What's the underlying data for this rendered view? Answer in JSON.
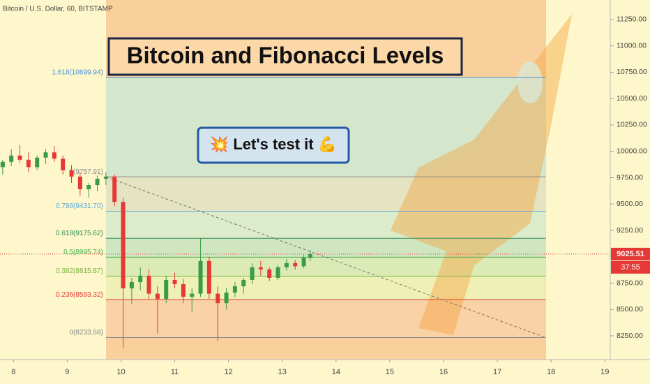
{
  "chart_data": {
    "type": "candlestick",
    "header": "Bitcoin / U.S. Dollar, 60, BITSTAMP",
    "title": "Bitcoin and Fibonacci Levels",
    "callout": "💥 Let's test it 💪",
    "xlim": [
      7.75,
      19.1
    ],
    "xticks": [
      8,
      9,
      10,
      11,
      12,
      13,
      14,
      15,
      16,
      17,
      18,
      19
    ],
    "ylim": [
      8025,
      11435
    ],
    "yticks": [
      {
        "value": 8250,
        "label": "8250.00"
      },
      {
        "value": 8500,
        "label": "8500.00"
      },
      {
        "value": 8750,
        "label": "8750.00"
      },
      {
        "value": 9000,
        "label": "9000.00"
      },
      {
        "value": 9250,
        "label": "9250.00"
      },
      {
        "value": 9500,
        "label": "9500.00"
      },
      {
        "value": 9750,
        "label": "9750.00"
      },
      {
        "value": 10000,
        "label": "10000.00"
      },
      {
        "value": 10250,
        "label": "10250.00"
      },
      {
        "value": 10500,
        "label": "10500.00"
      },
      {
        "value": 10750,
        "label": "10750.00"
      },
      {
        "value": 11000,
        "label": "11000.00"
      },
      {
        "value": 11250,
        "label": "11250.00"
      }
    ],
    "up_color": "#3a9c47",
    "down_color": "#e53935",
    "candles": {
      "x": [
        7.8,
        7.96,
        8.12,
        8.28,
        8.44,
        8.6,
        8.76,
        8.92,
        9.08,
        9.24,
        9.4,
        9.56,
        9.72,
        9.88,
        10.04,
        10.2,
        10.36,
        10.52,
        10.68,
        10.84,
        11.0,
        11.16,
        11.32,
        11.48,
        11.64,
        11.8,
        11.96,
        12.12,
        12.28,
        12.44,
        12.6,
        12.76,
        12.92,
        13.08,
        13.24,
        13.4,
        13.52
      ],
      "open": [
        9850,
        9900,
        9960,
        9920,
        9850,
        9940,
        9990,
        9930,
        9820,
        9760,
        9640,
        9680,
        9740,
        9760,
        9520,
        8700,
        8760,
        8820,
        8650,
        8600,
        8780,
        8740,
        8620,
        8650,
        8960,
        8650,
        8560,
        8660,
        8720,
        8780,
        8900,
        8880,
        8800,
        8900,
        8940,
        8910,
        8990
      ],
      "high": [
        9920,
        10020,
        10060,
        9990,
        9960,
        10020,
        10050,
        9960,
        9870,
        9800,
        9700,
        9770,
        9800,
        9780,
        9560,
        8800,
        8900,
        8880,
        8720,
        8820,
        8850,
        8790,
        8700,
        9180,
        9000,
        8720,
        8700,
        8760,
        8800,
        8940,
        8960,
        8900,
        8920,
        8980,
        8970,
        9020,
        9060
      ],
      "low": [
        9780,
        9860,
        9890,
        9800,
        9820,
        9880,
        9900,
        9780,
        9700,
        9580,
        9560,
        9620,
        9680,
        9480,
        8130,
        8550,
        8680,
        8600,
        8270,
        8560,
        8700,
        8560,
        8480,
        8620,
        8600,
        8200,
        8500,
        8620,
        8650,
        8740,
        8820,
        8770,
        8780,
        8870,
        8880,
        8890,
        8960
      ],
      "close": [
        9900,
        9960,
        9920,
        9850,
        9940,
        9990,
        9930,
        9820,
        9760,
        9640,
        9680,
        9740,
        9760,
        9520,
        8700,
        8760,
        8820,
        8650,
        8600,
        8780,
        8740,
        8620,
        8650,
        8960,
        8650,
        8560,
        8660,
        8720,
        8780,
        8900,
        8880,
        8800,
        8900,
        8940,
        8910,
        8990,
        9025.51
      ]
    },
    "fib_range_x": [
      9.72,
      17.9
    ],
    "fib_levels": [
      {
        "value": 10699.94,
        "label": "1.618(10699.94)",
        "color": "#4a90d9",
        "fill": "#d4e6cc"
      },
      {
        "value": 9757.91,
        "label": "1(9757.91)",
        "color": "#888888",
        "fill": "#e4e4c2"
      },
      {
        "value": 9431.7,
        "label": "0.786(9431.70)",
        "color": "#5aa7d6",
        "fill": "#dcebc9"
      },
      {
        "value": 9175.62,
        "label": "0.618(9175.62)",
        "color": "#2e8b57",
        "fill": "#cfe6c1"
      },
      {
        "value": 8995.74,
        "label": "0.5(8995.74)",
        "color": "#4caf50",
        "fill": "#dcebb6"
      },
      {
        "value": 8815.87,
        "label": "0.382(8815.87)",
        "color": "#7cb342",
        "fill": "#eef0b6"
      },
      {
        "value": 8593.32,
        "label": "0.236(8593.32)",
        "color": "#e53935",
        "fill": "#f9d2a6"
      },
      {
        "value": 8233.58,
        "label": "0(8233.58)",
        "color": "#888888"
      }
    ],
    "trendline": {
      "x": [
        9.72,
        17.9
      ],
      "y": [
        9757.91,
        8233.58
      ]
    },
    "last_price": {
      "value": 9025.51,
      "label": "9025.51",
      "countdown": "37:55",
      "color": "#e53935"
    }
  }
}
